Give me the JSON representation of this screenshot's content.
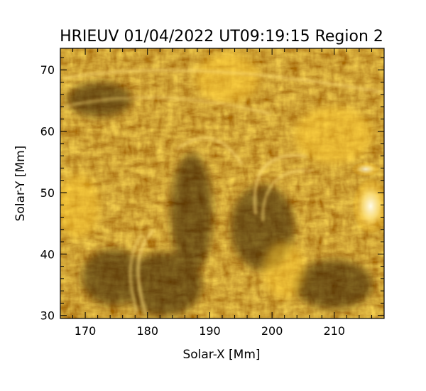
{
  "figure": {
    "title": "HRIEUV 01/04/2022 UT09:19:15 Region 2",
    "xlabel": "Solar-X [Mm]",
    "ylabel": "Solar-Y [Mm]",
    "xlim": [
      166,
      218
    ],
    "ylim": [
      29.5,
      73.5
    ],
    "xticks": [
      "170",
      "180",
      "190",
      "200",
      "210"
    ],
    "yticks": [
      "30",
      "40",
      "50",
      "60",
      "70"
    ],
    "colors": {
      "frame": "#000000",
      "image_dark": "#2a1800",
      "image_mid": "#a86a00",
      "image_bright": "#ffdc55",
      "image_peak": "#fff8e0"
    }
  }
}
